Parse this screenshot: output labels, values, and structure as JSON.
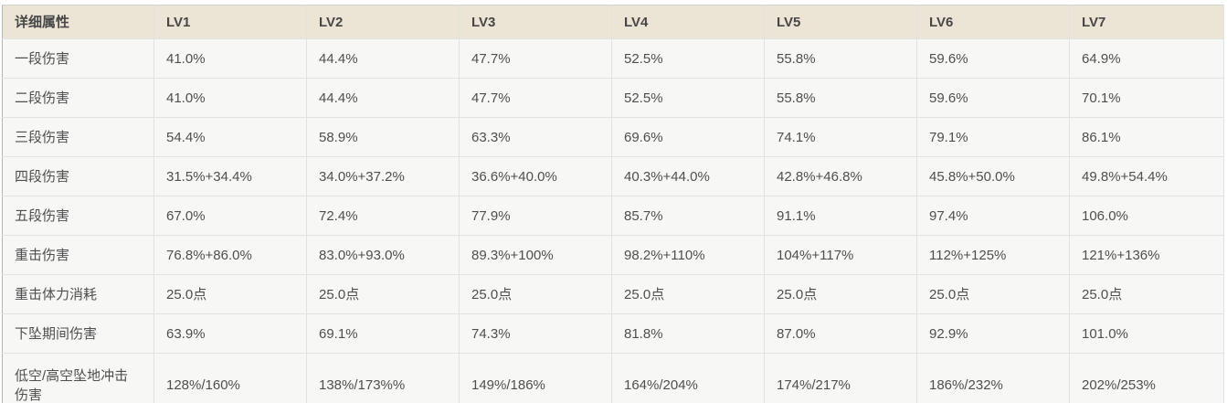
{
  "table": {
    "header": [
      "详细属性",
      "LV1",
      "LV2",
      "LV3",
      "LV4",
      "LV5",
      "LV6",
      "LV7"
    ],
    "rows": [
      {
        "label": "一段伤害",
        "values": [
          "41.0%",
          "44.4%",
          "47.7%",
          "52.5%",
          "55.8%",
          "59.6%",
          "64.9%"
        ]
      },
      {
        "label": "二段伤害",
        "values": [
          "41.0%",
          "44.4%",
          "47.7%",
          "52.5%",
          "55.8%",
          "59.6%",
          "70.1%"
        ]
      },
      {
        "label": "三段伤害",
        "values": [
          "54.4%",
          "58.9%",
          "63.3%",
          "69.6%",
          "74.1%",
          "79.1%",
          "86.1%"
        ]
      },
      {
        "label": "四段伤害",
        "values": [
          "31.5%+34.4%",
          "34.0%+37.2%",
          "36.6%+40.0%",
          "40.3%+44.0%",
          "42.8%+46.8%",
          "45.8%+50.0%",
          "49.8%+54.4%"
        ]
      },
      {
        "label": "五段伤害",
        "values": [
          "67.0%",
          "72.4%",
          "77.9%",
          "85.7%",
          "91.1%",
          "97.4%",
          "106.0%"
        ]
      },
      {
        "label": "重击伤害",
        "values": [
          "76.8%+86.0%",
          "83.0%+93.0%",
          "89.3%+100%",
          "98.2%+110%",
          "104%+117%",
          "112%+125%",
          "121%+136%"
        ]
      },
      {
        "label": "重击体力消耗",
        "values": [
          "25.0点",
          "25.0点",
          "25.0点",
          "25.0点",
          "25.0点",
          "25.0点",
          "25.0点"
        ]
      },
      {
        "label": "下坠期间伤害",
        "values": [
          "63.9%",
          "69.1%",
          "74.3%",
          "81.8%",
          "87.0%",
          "92.9%",
          "101.0%"
        ]
      },
      {
        "label": "低空/高空坠地冲击伤害",
        "values": [
          "128%/160%",
          "138%/173%%",
          "149%/186%",
          "164%/204%",
          "174%/217%",
          "186%/232%",
          "202%/253%"
        ]
      }
    ]
  },
  "colors": {
    "header_bg": "#ece4d5",
    "row_bg": "#f7f7f5",
    "border_inner": "#e2e2e0",
    "border_outer_left": "#b4b4b4",
    "border_outer_top": "#d2d2d2",
    "header_text": "#474747",
    "cell_text": "#4f4f4f",
    "page_bg": "#ffffff"
  }
}
